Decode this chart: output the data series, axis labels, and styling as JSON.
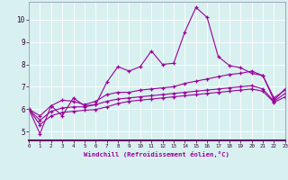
{
  "title": "",
  "xlabel": "Windchill (Refroidissement éolien,°C)",
  "ylabel": "",
  "background_color": "#d8f0f0",
  "line_color": "#990099",
  "x_min": 0,
  "x_max": 23,
  "y_min": 4.6,
  "y_max": 10.8,
  "yticks": [
    5,
    6,
    7,
    8,
    9,
    10
  ],
  "xticks": [
    0,
    1,
    2,
    3,
    4,
    5,
    6,
    7,
    8,
    9,
    10,
    11,
    12,
    13,
    14,
    15,
    16,
    17,
    18,
    19,
    20,
    21,
    22,
    23
  ],
  "series": [
    {
      "x": [
        0,
        1,
        2,
        3,
        4,
        5,
        6,
        7,
        8,
        9,
        10,
        11,
        12,
        13,
        14,
        15,
        16,
        17,
        18,
        19,
        20,
        21,
        22,
        23
      ],
      "y": [
        6.0,
        4.9,
        6.15,
        5.7,
        6.5,
        6.15,
        6.2,
        7.2,
        7.9,
        7.7,
        7.9,
        8.6,
        8.0,
        8.05,
        9.45,
        10.55,
        10.1,
        8.35,
        7.95,
        7.85,
        7.6,
        7.5,
        6.4,
        6.9
      ]
    },
    {
      "x": [
        0,
        1,
        2,
        3,
        4,
        5,
        6,
        7,
        8,
        9,
        10,
        11,
        12,
        13,
        14,
        15,
        16,
        17,
        18,
        19,
        20,
        21,
        22,
        23
      ],
      "y": [
        6.0,
        5.7,
        6.15,
        6.4,
        6.35,
        6.2,
        6.35,
        6.65,
        6.75,
        6.75,
        6.85,
        6.9,
        6.95,
        7.0,
        7.15,
        7.25,
        7.35,
        7.45,
        7.55,
        7.6,
        7.7,
        7.5,
        6.5,
        6.85
      ]
    },
    {
      "x": [
        0,
        1,
        2,
        3,
        4,
        5,
        6,
        7,
        8,
        9,
        10,
        11,
        12,
        13,
        14,
        15,
        16,
        17,
        18,
        19,
        20,
        21,
        22,
        23
      ],
      "y": [
        6.0,
        5.5,
        5.9,
        6.05,
        6.1,
        6.1,
        6.2,
        6.35,
        6.45,
        6.5,
        6.55,
        6.6,
        6.65,
        6.7,
        6.75,
        6.8,
        6.85,
        6.9,
        6.95,
        7.0,
        7.05,
        6.9,
        6.35,
        6.7
      ]
    },
    {
      "x": [
        0,
        1,
        2,
        3,
        4,
        5,
        6,
        7,
        8,
        9,
        10,
        11,
        12,
        13,
        14,
        15,
        16,
        17,
        18,
        19,
        20,
        21,
        22,
        23
      ],
      "y": [
        6.0,
        5.3,
        5.7,
        5.85,
        5.9,
        5.95,
        5.98,
        6.1,
        6.25,
        6.35,
        6.4,
        6.45,
        6.5,
        6.55,
        6.6,
        6.65,
        6.7,
        6.75,
        6.8,
        6.85,
        6.9,
        6.8,
        6.3,
        6.55
      ]
    }
  ]
}
